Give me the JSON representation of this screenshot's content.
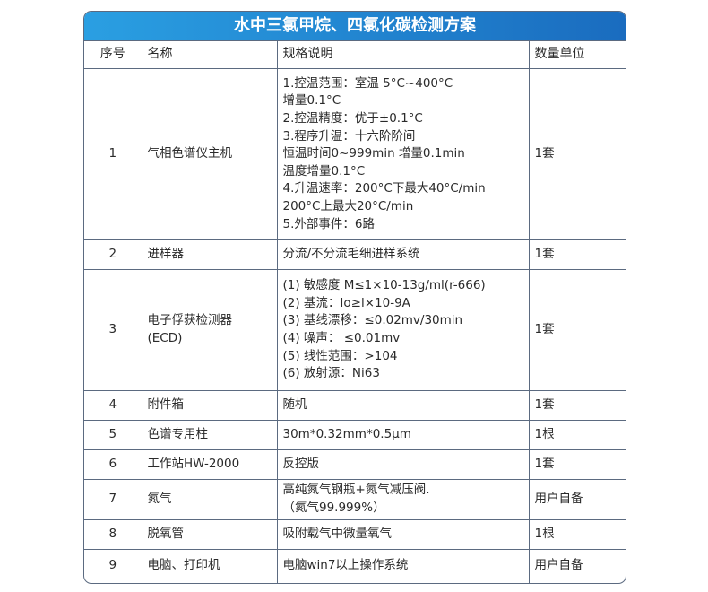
{
  "title": "水中三氯甲烷、四氯化碳检测方案",
  "headers": [
    "序号",
    "名称",
    "规格说明",
    "数量单位"
  ],
  "header_gradient": [
    "#2a9fe2",
    "#1a6cbf"
  ],
  "rows": [
    {
      "no": "1",
      "name": [
        "气相色谱仪主机"
      ],
      "spec": [
        "1.控温范围：室温 5°C~400°C",
        "增量0.1°C",
        "2.控温精度：优于±0.1°C",
        "3.程序升温：十六阶阶间",
        "恒温时间0~999min 增量0.1min",
        "温度增量0.1°C",
        "4.升温速率：200°C下最大40°C/min",
        "200°C上最大20°C/min",
        "5.外部事件：6路"
      ],
      "qty": "1套"
    },
    {
      "no": "2",
      "name": [
        "进样器"
      ],
      "spec": [
        "分流/不分流毛细进样系统"
      ],
      "qty": "1套"
    },
    {
      "no": "3",
      "name": [
        "电子俘获检测器",
        "(ECD)"
      ],
      "spec": [
        "(1) 敏感度 M≤1×10-13g/ml(r-666)",
        "(2) 基流：Io≥l×10-9A",
        "(3) 基线漂移：≤0.02mv/30min",
        "(4) 噪声： ≤0.01mv",
        "(5) 线性范围：>104",
        "(6) 放射源：Ni63"
      ],
      "qty": "1套"
    },
    {
      "no": "4",
      "name": [
        "附件箱"
      ],
      "spec": [
        "随机"
      ],
      "qty": "1套"
    },
    {
      "no": "5",
      "name": [
        "色谱专用柱"
      ],
      "spec": [
        "30m*0.32mm*0.5µm"
      ],
      "qty": "1根"
    },
    {
      "no": "6",
      "name": [
        "工作站HW-2000"
      ],
      "spec": [
        "反控版"
      ],
      "qty": "1套"
    },
    {
      "no": "7",
      "name": [
        "氮气"
      ],
      "spec": [
        "高纯氮气钢瓶+氮气减压阀.",
        "（氮气99.999%）"
      ],
      "qty": "用户自备"
    },
    {
      "no": "8",
      "name": [
        "脱氧管"
      ],
      "spec": [
        "吸附载气中微量氧气"
      ],
      "qty": "1根"
    },
    {
      "no": "9",
      "name": [
        "电脑、打印机"
      ],
      "spec": [
        "电脑win7以上操作系统"
      ],
      "qty": "用户自备"
    }
  ]
}
